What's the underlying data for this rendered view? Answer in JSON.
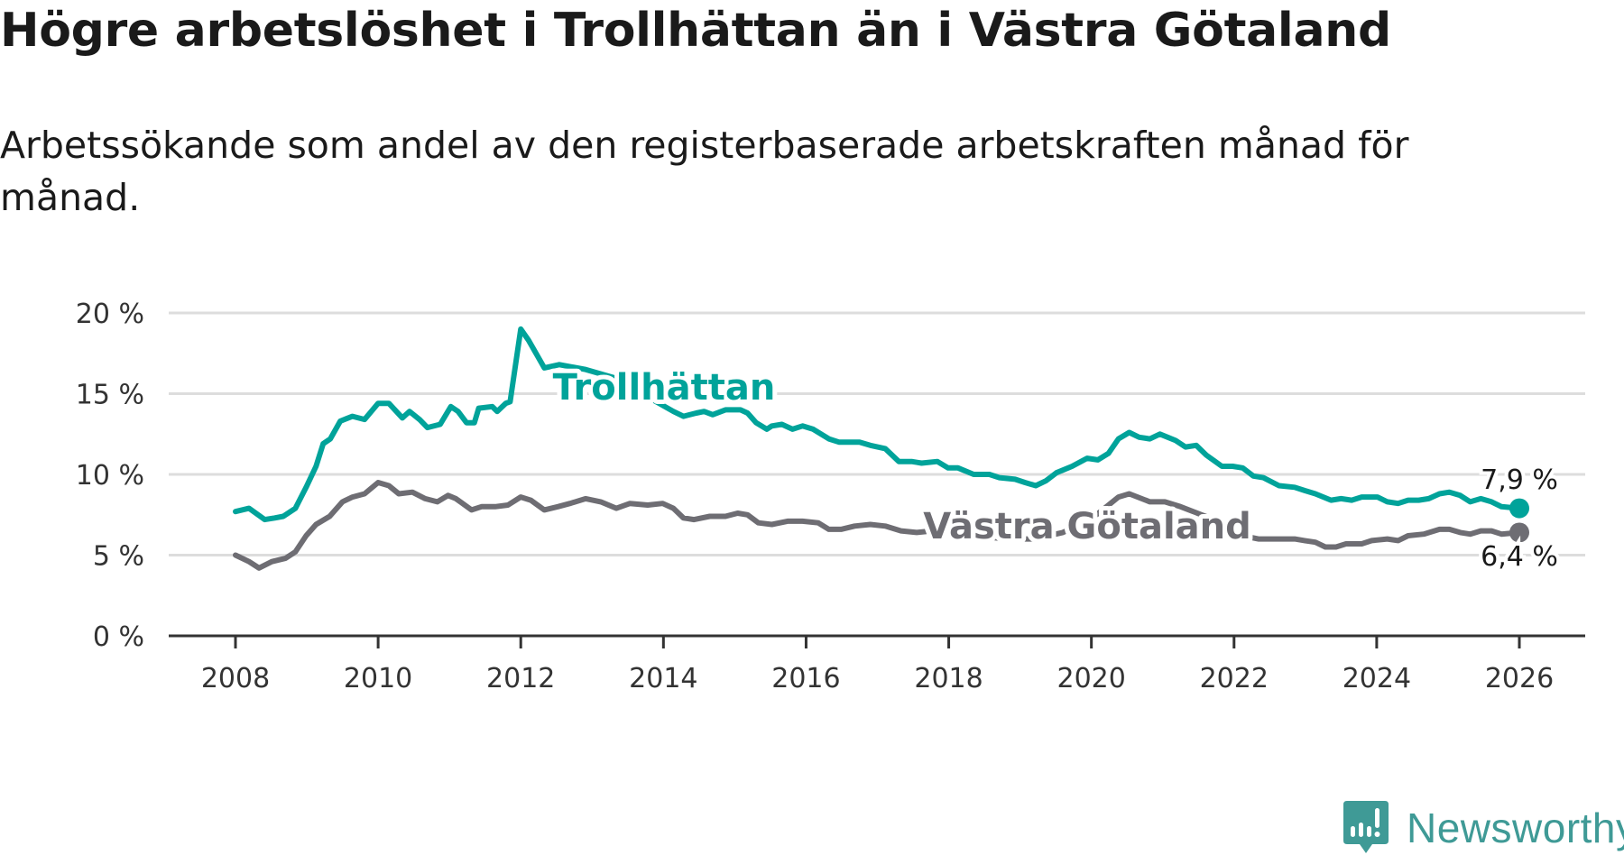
{
  "title": "Högre arbetslöshet i Trollhättan än i Västra Götaland",
  "subtitle": "Arbetssökande som andel av den registerbaserade arbetskraften månad för månad.",
  "brand": "Newsworthy",
  "colors": {
    "trollhattan": "#00a39a",
    "vastra": "#6e6d73",
    "grid": "#dddddd",
    "axis": "#333333",
    "brand": "#3f9a96"
  },
  "chart_data": {
    "type": "line",
    "title": "Högre arbetslöshet i Trollhättan än i Västra Götaland",
    "xlabel": "",
    "ylabel": "",
    "xlim": [
      2008,
      2026
    ],
    "ylim": [
      0,
      20
    ],
    "x_ticks": [
      2008,
      2010,
      2012,
      2014,
      2016,
      2018,
      2020,
      2022,
      2024,
      2026
    ],
    "x_tick_labels": [
      "2008",
      "2010",
      "2012",
      "2014",
      "2016",
      "2018",
      "2020",
      "2022",
      "2024",
      "2026"
    ],
    "y_ticks": [
      0,
      5,
      10,
      15,
      20
    ],
    "y_tick_labels": [
      "0 %",
      "5 %",
      "10 %",
      "15 %",
      "20 %"
    ],
    "grid": true,
    "series": [
      {
        "name": "Trollhättan",
        "end_label": "7,9 %",
        "points": [
          [
            2008.0,
            7.7
          ],
          [
            2008.19,
            7.9
          ],
          [
            2008.41,
            7.2
          ],
          [
            2008.55,
            7.3
          ],
          [
            2008.67,
            7.4
          ],
          [
            2008.84,
            7.9
          ],
          [
            2008.99,
            9.2
          ],
          [
            2009.13,
            10.5
          ],
          [
            2009.23,
            11.9
          ],
          [
            2009.33,
            12.2
          ],
          [
            2009.47,
            13.3
          ],
          [
            2009.64,
            13.6
          ],
          [
            2009.81,
            13.4
          ],
          [
            2010.0,
            14.4
          ],
          [
            2010.15,
            14.4
          ],
          [
            2010.34,
            13.5
          ],
          [
            2010.44,
            13.9
          ],
          [
            2010.58,
            13.4
          ],
          [
            2010.69,
            12.9
          ],
          [
            2010.87,
            13.1
          ],
          [
            2011.02,
            14.2
          ],
          [
            2011.12,
            13.9
          ],
          [
            2011.24,
            13.2
          ],
          [
            2011.35,
            13.2
          ],
          [
            2011.41,
            14.1
          ],
          [
            2011.6,
            14.2
          ],
          [
            2011.67,
            13.9
          ],
          [
            2011.79,
            14.4
          ],
          [
            2011.85,
            14.5
          ],
          [
            2012.0,
            19.0
          ],
          [
            2012.11,
            18.3
          ],
          [
            2012.33,
            16.6
          ],
          [
            2012.54,
            16.8
          ],
          [
            2012.91,
            16.5
          ],
          [
            2013.3,
            16.0
          ],
          [
            2013.7,
            15.0
          ],
          [
            2014.14,
            13.9
          ],
          [
            2014.28,
            13.6
          ],
          [
            2014.46,
            13.8
          ],
          [
            2014.57,
            13.9
          ],
          [
            2014.69,
            13.7
          ],
          [
            2014.87,
            14.0
          ],
          [
            2015.08,
            14.0
          ],
          [
            2015.18,
            13.8
          ],
          [
            2015.3,
            13.2
          ],
          [
            2015.45,
            12.8
          ],
          [
            2015.52,
            13.0
          ],
          [
            2015.66,
            13.1
          ],
          [
            2015.81,
            12.8
          ],
          [
            2015.95,
            13.0
          ],
          [
            2016.1,
            12.8
          ],
          [
            2016.32,
            12.2
          ],
          [
            2016.46,
            12.0
          ],
          [
            2016.75,
            12.0
          ],
          [
            2016.9,
            11.8
          ],
          [
            2017.11,
            11.6
          ],
          [
            2017.3,
            10.8
          ],
          [
            2017.48,
            10.8
          ],
          [
            2017.62,
            10.7
          ],
          [
            2017.84,
            10.8
          ],
          [
            2017.99,
            10.4
          ],
          [
            2018.13,
            10.4
          ],
          [
            2018.35,
            10.0
          ],
          [
            2018.57,
            10.0
          ],
          [
            2018.71,
            9.8
          ],
          [
            2018.93,
            9.7
          ],
          [
            2019.07,
            9.5
          ],
          [
            2019.22,
            9.3
          ],
          [
            2019.36,
            9.6
          ],
          [
            2019.51,
            10.1
          ],
          [
            2019.73,
            10.5
          ],
          [
            2019.94,
            11.0
          ],
          [
            2020.09,
            10.9
          ],
          [
            2020.24,
            11.3
          ],
          [
            2020.38,
            12.2
          ],
          [
            2020.53,
            12.6
          ],
          [
            2020.67,
            12.3
          ],
          [
            2020.82,
            12.2
          ],
          [
            2020.96,
            12.5
          ],
          [
            2021.18,
            12.1
          ],
          [
            2021.32,
            11.7
          ],
          [
            2021.47,
            11.8
          ],
          [
            2021.61,
            11.2
          ],
          [
            2021.83,
            10.5
          ],
          [
            2021.98,
            10.5
          ],
          [
            2022.12,
            10.4
          ],
          [
            2022.27,
            9.9
          ],
          [
            2022.41,
            9.8
          ],
          [
            2022.63,
            9.3
          ],
          [
            2022.85,
            9.2
          ],
          [
            2022.99,
            9.0
          ],
          [
            2023.14,
            8.8
          ],
          [
            2023.36,
            8.4
          ],
          [
            2023.5,
            8.5
          ],
          [
            2023.65,
            8.4
          ],
          [
            2023.79,
            8.6
          ],
          [
            2024.01,
            8.6
          ],
          [
            2024.15,
            8.3
          ],
          [
            2024.3,
            8.2
          ],
          [
            2024.44,
            8.4
          ],
          [
            2024.59,
            8.4
          ],
          [
            2024.73,
            8.5
          ],
          [
            2024.88,
            8.8
          ],
          [
            2025.02,
            8.9
          ],
          [
            2025.17,
            8.7
          ],
          [
            2025.31,
            8.3
          ],
          [
            2025.46,
            8.5
          ],
          [
            2025.61,
            8.3
          ],
          [
            2025.75,
            8.0
          ],
          [
            2026.0,
            7.9
          ]
        ]
      },
      {
        "name": "Västra Götaland",
        "end_label": "6,4 %",
        "points": [
          [
            2008.0,
            5.0
          ],
          [
            2008.19,
            4.6
          ],
          [
            2008.33,
            4.2
          ],
          [
            2008.51,
            4.6
          ],
          [
            2008.7,
            4.8
          ],
          [
            2008.84,
            5.2
          ],
          [
            2008.99,
            6.2
          ],
          [
            2009.13,
            6.9
          ],
          [
            2009.32,
            7.4
          ],
          [
            2009.5,
            8.3
          ],
          [
            2009.64,
            8.6
          ],
          [
            2009.81,
            8.8
          ],
          [
            2010.0,
            9.5
          ],
          [
            2010.15,
            9.3
          ],
          [
            2010.29,
            8.8
          ],
          [
            2010.48,
            8.9
          ],
          [
            2010.66,
            8.5
          ],
          [
            2010.83,
            8.3
          ],
          [
            2010.98,
            8.7
          ],
          [
            2011.09,
            8.5
          ],
          [
            2011.31,
            7.8
          ],
          [
            2011.45,
            8.0
          ],
          [
            2011.64,
            8.0
          ],
          [
            2011.82,
            8.1
          ],
          [
            2012.0,
            8.6
          ],
          [
            2012.14,
            8.4
          ],
          [
            2012.33,
            7.8
          ],
          [
            2012.52,
            8.0
          ],
          [
            2012.69,
            8.2
          ],
          [
            2012.91,
            8.5
          ],
          [
            2013.12,
            8.3
          ],
          [
            2013.34,
            7.9
          ],
          [
            2013.53,
            8.2
          ],
          [
            2013.78,
            8.1
          ],
          [
            2013.99,
            8.2
          ],
          [
            2014.14,
            7.9
          ],
          [
            2014.28,
            7.3
          ],
          [
            2014.43,
            7.2
          ],
          [
            2014.65,
            7.4
          ],
          [
            2014.87,
            7.4
          ],
          [
            2015.04,
            7.6
          ],
          [
            2015.18,
            7.5
          ],
          [
            2015.33,
            7.0
          ],
          [
            2015.52,
            6.9
          ],
          [
            2015.74,
            7.1
          ],
          [
            2015.95,
            7.1
          ],
          [
            2016.17,
            7.0
          ],
          [
            2016.32,
            6.6
          ],
          [
            2016.49,
            6.6
          ],
          [
            2016.68,
            6.8
          ],
          [
            2016.9,
            6.9
          ],
          [
            2017.11,
            6.8
          ],
          [
            2017.33,
            6.5
          ],
          [
            2017.55,
            6.4
          ],
          [
            2017.77,
            6.5
          ],
          [
            2018.0,
            6.4
          ],
          [
            2018.4,
            6.2
          ],
          [
            2018.8,
            6.0
          ],
          [
            2019.2,
            6.0
          ],
          [
            2019.6,
            6.4
          ],
          [
            2019.9,
            7.0
          ],
          [
            2020.1,
            7.6
          ],
          [
            2020.38,
            8.6
          ],
          [
            2020.53,
            8.8
          ],
          [
            2020.82,
            8.3
          ],
          [
            2021.03,
            8.3
          ],
          [
            2021.25,
            8.0
          ],
          [
            2021.6,
            7.4
          ],
          [
            2021.9,
            6.8
          ],
          [
            2022.12,
            6.2
          ],
          [
            2022.34,
            6.0
          ],
          [
            2022.63,
            6.0
          ],
          [
            2022.85,
            6.0
          ],
          [
            2022.99,
            5.9
          ],
          [
            2023.14,
            5.8
          ],
          [
            2023.28,
            5.5
          ],
          [
            2023.43,
            5.5
          ],
          [
            2023.57,
            5.7
          ],
          [
            2023.79,
            5.7
          ],
          [
            2023.93,
            5.9
          ],
          [
            2024.15,
            6.0
          ],
          [
            2024.3,
            5.9
          ],
          [
            2024.44,
            6.2
          ],
          [
            2024.66,
            6.3
          ],
          [
            2024.88,
            6.6
          ],
          [
            2025.02,
            6.6
          ],
          [
            2025.17,
            6.4
          ],
          [
            2025.31,
            6.3
          ],
          [
            2025.46,
            6.5
          ],
          [
            2025.61,
            6.5
          ],
          [
            2025.75,
            6.3
          ],
          [
            2026.0,
            6.4
          ]
        ]
      }
    ]
  }
}
